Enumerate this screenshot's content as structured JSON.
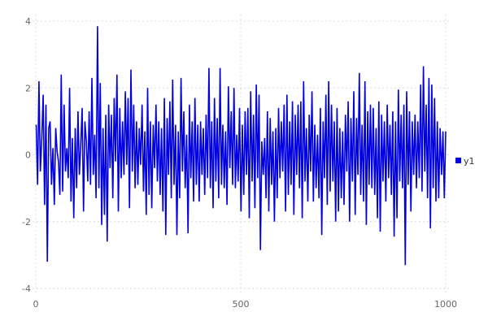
{
  "chart_data": {
    "type": "line",
    "title": "",
    "xlabel": "",
    "ylabel": "",
    "xlim": [
      0,
      1000
    ],
    "ylim": [
      -4,
      4
    ],
    "x_ticks": [
      "0",
      "500",
      "1000"
    ],
    "y_ticks": [
      "4",
      "2",
      "0",
      "-2",
      "-4"
    ],
    "x_tick_values": [
      0,
      500,
      1000
    ],
    "y_tick_values": [
      4,
      2,
      0,
      -2,
      -4
    ],
    "grid": true,
    "legend_placement": "right",
    "series": [
      {
        "name": "y1",
        "color": "#0000e0",
        "x_range": [
          1,
          1000
        ],
        "values": [
          0.9,
          -0.9,
          2.2,
          -0.5,
          0.5,
          1.8,
          -1.5,
          1.5,
          -3.2,
          0.8,
          1.0,
          -0.9,
          0.2,
          -1.5,
          0.8,
          0.1,
          -0.2,
          -1.2,
          2.4,
          -1.1,
          1.5,
          -0.5,
          0.2,
          -0.7,
          2.0,
          -1.4,
          0.5,
          -1.9,
          0.8,
          -1.0,
          1.3,
          -0.6,
          0.3,
          1.4,
          -1.7,
          1.0,
          0.4,
          -0.8,
          1.3,
          -0.9,
          2.3,
          -0.6,
          0.6,
          -1.3,
          3.85,
          -1.0,
          2.15,
          -2.1,
          0.8,
          -1.8,
          1.2,
          -2.6,
          1.5,
          -0.4,
          1.2,
          -1.3,
          1.7,
          -0.2,
          2.4,
          -1.7,
          1.4,
          -0.7,
          1.0,
          -0.6,
          1.9,
          -0.3,
          1.7,
          -1.6,
          2.55,
          -0.5,
          1.5,
          -1.0,
          1.0,
          -0.9,
          0.8,
          -0.3,
          1.5,
          -1.1,
          0.7,
          -1.8,
          2.0,
          -1.2,
          1.0,
          -1.6,
          0.9,
          -0.4,
          1.5,
          -0.8,
          1.0,
          -1.2,
          0.8,
          -1.7,
          1.7,
          -2.4,
          1.1,
          -0.6,
          1.6,
          -1.3,
          2.25,
          -0.9,
          0.9,
          -2.4,
          0.7,
          -1.3,
          2.3,
          -0.5,
          1.3,
          -1.0,
          0.6,
          -2.35,
          1.5,
          -0.7,
          1.0,
          -1.4,
          1.7,
          -0.9,
          0.9,
          -1.4,
          1.0,
          -0.6,
          0.8,
          -1.2,
          1.2,
          -0.7,
          2.6,
          -1.0,
          1.0,
          -1.6,
          1.7,
          -0.8,
          1.1,
          -1.3,
          2.6,
          -0.9,
          0.9,
          -1.0,
          0.7,
          -1.5,
          2.05,
          -0.4,
          1.3,
          -0.9,
          2.0,
          -1.0,
          0.6,
          -0.8,
          1.4,
          -1.7,
          0.9,
          -1.2,
          1.3,
          -0.6,
          1.4,
          -1.9,
          1.9,
          -0.8,
          1.2,
          -1.6,
          2.1,
          -0.7,
          1.8,
          -2.85,
          0.4,
          -0.6,
          0.5,
          -1.3,
          1.3,
          -1.7,
          1.1,
          -0.9,
          0.7,
          -2.0,
          0.8,
          -1.3,
          1.4,
          -0.7,
          1.0,
          -0.5,
          1.5,
          -1.7,
          1.8,
          -1.2,
          1.0,
          -0.9,
          1.6,
          -1.8,
          1.2,
          -0.6,
          1.5,
          -1.0,
          1.6,
          -1.9,
          2.2,
          -0.8,
          0.8,
          -1.4,
          1.2,
          -0.5,
          1.9,
          -1.4,
          0.9,
          -1.0,
          0.6,
          -1.3,
          1.4,
          -2.4,
          1.0,
          -0.7,
          1.8,
          -1.5,
          2.2,
          -1.1,
          1.5,
          -0.8,
          1.0,
          -2.0,
          1.4,
          -1.7,
          0.8,
          -1.3,
          0.7,
          -1.5,
          1.2,
          -0.5,
          1.6,
          -2.0,
          1.1,
          -0.8,
          1.9,
          -1.8,
          1.1,
          -0.6,
          2.45,
          -1.2,
          0.9,
          -1.4,
          2.2,
          -2.1,
          1.3,
          -0.9,
          1.5,
          -1.0,
          1.4,
          -1.2,
          0.8,
          -1.9,
          1.6,
          -2.3,
          1.2,
          -0.8,
          1.0,
          -1.4,
          1.5,
          -0.7,
          0.9,
          -1.2,
          1.3,
          -2.45,
          1.0,
          -1.9,
          1.95,
          -0.8,
          1.2,
          -1.0,
          1.5,
          -3.3,
          1.9,
          -0.9,
          1.3,
          -1.7,
          1.0,
          -0.6,
          1.2,
          -1.0,
          1.0,
          -0.7,
          2.1,
          -1.1,
          2.65,
          -0.5,
          1.5,
          -1.3,
          2.3,
          -2.2,
          2.1,
          -1.0,
          1.7,
          -1.4,
          1.0,
          -1.3,
          0.8,
          -0.6,
          0.7,
          -1.3,
          0.7
        ]
      }
    ]
  }
}
